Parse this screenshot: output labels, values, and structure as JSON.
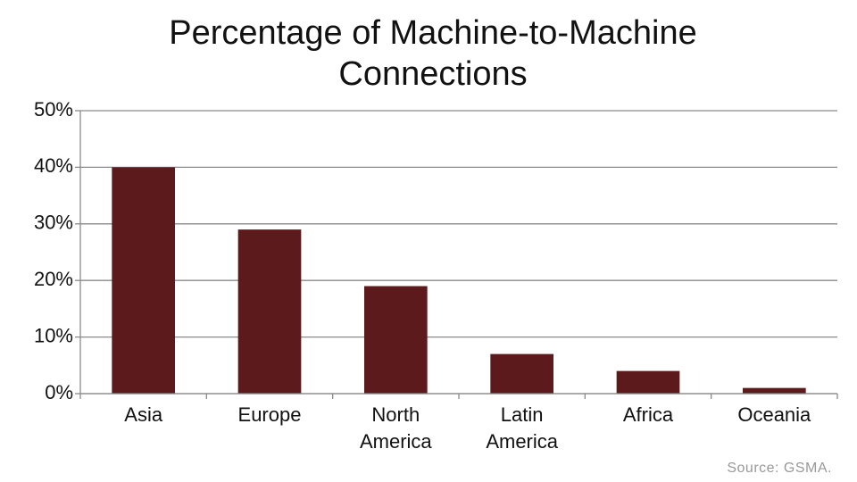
{
  "chart_data": {
    "type": "bar",
    "title": "Percentage of Machine-to-Machine Connections",
    "categories": [
      "Asia",
      "Europe",
      "North America",
      "Latin America",
      "Africa",
      "Oceania"
    ],
    "values": [
      40,
      29,
      19,
      7,
      4,
      1
    ],
    "color": "#5c1a1c",
    "ylim": [
      0,
      50
    ],
    "yticks": [
      {
        "value": 0,
        "label": "0%"
      },
      {
        "value": 10,
        "label": "10%"
      },
      {
        "value": 20,
        "label": "20%"
      },
      {
        "value": 30,
        "label": "30%"
      },
      {
        "value": 40,
        "label": "40%"
      },
      {
        "value": 50,
        "label": "50%"
      }
    ],
    "grid": true,
    "source": "Source: GSMA."
  }
}
